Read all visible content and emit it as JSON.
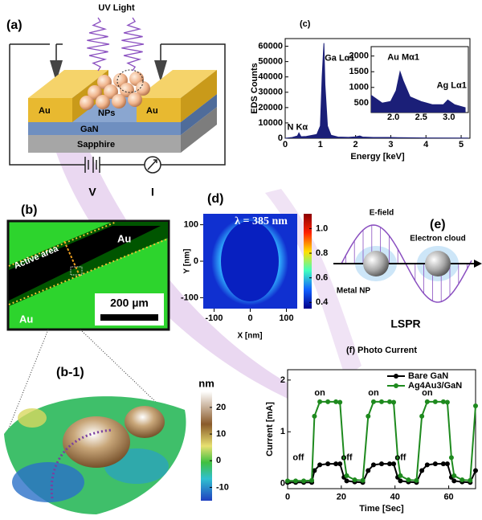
{
  "panel_a": {
    "label": "(a)",
    "light": "UV Light",
    "electrode_left": "Au",
    "electrode_right": "Au",
    "particles": "NPs",
    "layer": "GaN",
    "substrate": "Sapphire",
    "voltage": "V",
    "current": "I"
  },
  "panel_b": {
    "label": "(b)",
    "electrode_top": "Au",
    "electrode_bottom": "Au",
    "region": "Active area",
    "scale_bar": "200 µm"
  },
  "panel_b1": {
    "label": "(b-1)",
    "colorbar": {
      "unit": "nm",
      "lim": [
        -15,
        26
      ],
      "ticks": [
        20,
        10,
        0,
        -10
      ]
    }
  },
  "panel_d": {
    "label": "(d)",
    "annotation": "λ = 385 nm",
    "xlabel": "X [nm]",
    "ylabel": "Y [nm]",
    "xlim": [
      -130,
      130
    ],
    "xticks": [
      -100,
      0,
      100
    ],
    "ylim": [
      -130,
      130
    ],
    "yticks": [
      -100,
      0,
      100
    ],
    "colorbar": {
      "lim": [
        0.35,
        1.12
      ],
      "ticks": [
        {
          "value": 1,
          "label": "1.0"
        },
        0.8,
        0.6,
        0.4
      ]
    }
  },
  "panel_e": {
    "label": "(e)",
    "field": "E-field",
    "cloud": "Electron cloud",
    "particle": "Metal NP",
    "caption": "LSPR"
  },
  "chart_data": [
    {
      "type": "area",
      "title": "(c)",
      "xlabel": "Energy [keV]",
      "ylabel": "EDS Counts",
      "color": "#1b1f78",
      "x": [
        0,
        0.2,
        0.35,
        0.39,
        0.45,
        0.6,
        0.9,
        1.0,
        1.05,
        1.1,
        1.13,
        1.2,
        1.3,
        1.5,
        1.8,
        2.0,
        2.12,
        2.2,
        2.5,
        2.98,
        3.2,
        4.0,
        5.2
      ],
      "values": [
        0,
        500,
        1500,
        3500,
        1000,
        1200,
        2500,
        8000,
        40000,
        62000,
        35000,
        8000,
        2000,
        800,
        600,
        900,
        1500,
        800,
        500,
        500,
        400,
        200,
        100
      ],
      "xlim": [
        0,
        5.25
      ],
      "xticks": [
        0,
        1,
        2,
        3,
        4,
        5
      ],
      "ylim": [
        0,
        65000
      ],
      "yticks": [
        0,
        10000,
        20000,
        30000,
        40000,
        50000,
        60000
      ],
      "annotations": [
        "N Kα",
        "Ga Lα1"
      ]
    },
    {
      "type": "area",
      "color": "#1b1f78",
      "x": [
        1.6,
        1.8,
        1.95,
        2.05,
        2.12,
        2.18,
        2.3,
        2.5,
        2.7,
        2.9,
        2.98,
        3.1,
        3.3
      ],
      "values": [
        750,
        500,
        550,
        900,
        1500,
        1200,
        700,
        550,
        450,
        450,
        600,
        450,
        350
      ],
      "xlim": [
        1.6,
        3.35
      ],
      "xticks": [
        {
          "value": 2,
          "label": "2.0"
        },
        2.5,
        {
          "value": 3,
          "label": "3.0"
        }
      ],
      "ylim": [
        200,
        2300
      ],
      "yticks": [
        500,
        1000,
        1500,
        2000
      ],
      "annotations": [
        "Au Mα1",
        "Ag Lα1"
      ]
    },
    {
      "type": "line",
      "title": "(f) Photo Current",
      "xlabel": "Time [Sec]",
      "ylabel": "Current [mA]",
      "legend": "upper right",
      "x": [
        0,
        3,
        6,
        9,
        10,
        12,
        15,
        18,
        19.5,
        21,
        22,
        25,
        28,
        30,
        32,
        35,
        38,
        39.5,
        41,
        42,
        45,
        48,
        50,
        52,
        55,
        58,
        59.5,
        61,
        62,
        65,
        68,
        70
      ],
      "series": [
        {
          "name": "Bare GaN",
          "color": "#000000",
          "values": [
            0.02,
            0.02,
            0.02,
            0.02,
            0.25,
            0.36,
            0.38,
            0.38,
            0.38,
            0.12,
            0.05,
            0.03,
            0.02,
            0.25,
            0.36,
            0.38,
            0.38,
            0.38,
            0.12,
            0.05,
            0.03,
            0.02,
            0.25,
            0.36,
            0.38,
            0.38,
            0.38,
            0.12,
            0.05,
            0.03,
            0.02,
            0.25
          ]
        },
        {
          "name": "Ag4Au3/GaN",
          "color": "#1e8a1e",
          "values": [
            0.05,
            0.05,
            0.05,
            0.06,
            1.3,
            1.58,
            1.58,
            1.58,
            1.57,
            0.5,
            0.15,
            0.07,
            0.06,
            1.3,
            1.58,
            1.58,
            1.58,
            1.57,
            0.5,
            0.15,
            0.07,
            0.06,
            1.3,
            1.58,
            1.58,
            1.58,
            1.57,
            0.5,
            0.15,
            0.07,
            0.06,
            1.5
          ]
        }
      ],
      "xlim": [
        0,
        70
      ],
      "xticks": [
        0,
        20,
        40,
        60
      ],
      "ylim": [
        -0.1,
        2.2
      ],
      "yticks": [
        0,
        1,
        2
      ],
      "annotations": [
        "off",
        "on",
        "off",
        "on",
        "off",
        "on"
      ]
    }
  ]
}
